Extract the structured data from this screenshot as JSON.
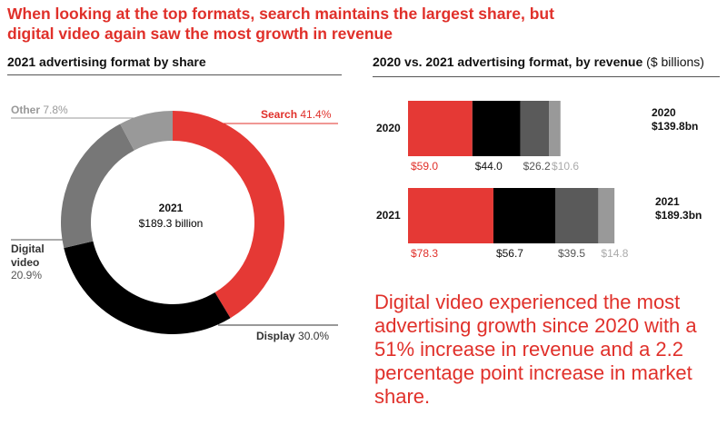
{
  "headline": "When looking at the top formats, search maintains the largest share, but digital video again saw the most growth in revenue",
  "note": "Digital video experienced the most advertising growth since 2020 with a 51% increase in revenue and a 2.2 percentage point increase in market share.",
  "colors": {
    "search": "#e53935",
    "display": "#000000",
    "video": "#5a5a5a",
    "other": "#999999",
    "video_donut": "#777777"
  },
  "chart_data": [
    {
      "type": "pie",
      "title": "2021 advertising format by share",
      "center_title": "2021",
      "center_value": "$189.3 billion",
      "slices": [
        {
          "name": "Search",
          "value": 41.4,
          "label": "41.4%"
        },
        {
          "name": "Display",
          "value": 30.0,
          "label": "30.0%"
        },
        {
          "name": "Digital video",
          "value": 20.9,
          "label": "20.9%",
          "name_lines": [
            "Digital",
            "video"
          ]
        },
        {
          "name": "Other",
          "value": 7.8,
          "label": "7.8%"
        }
      ]
    },
    {
      "type": "bar",
      "stacked": true,
      "orientation": "horizontal",
      "title": "2020 vs. 2021 advertising format, by revenue",
      "title_unit": "($ billions)",
      "categories": [
        "2020",
        "2021"
      ],
      "totals": [
        {
          "year": "2020",
          "label": "$139.8bn"
        },
        {
          "year": "2021",
          "label": "$189.3bn"
        }
      ],
      "series": [
        {
          "name": "Search",
          "values": [
            59.0,
            78.3
          ],
          "labels": [
            "$59.0",
            "$78.3"
          ]
        },
        {
          "name": "Display",
          "values": [
            44.0,
            56.7
          ],
          "labels": [
            "$44.0",
            "$56.7"
          ]
        },
        {
          "name": "Digital video",
          "values": [
            26.2,
            39.5
          ],
          "labels": [
            "$26.2",
            "$39.5"
          ]
        },
        {
          "name": "Other",
          "values": [
            10.6,
            14.8
          ],
          "labels": [
            "$10.6",
            "$14.8"
          ]
        }
      ]
    }
  ]
}
